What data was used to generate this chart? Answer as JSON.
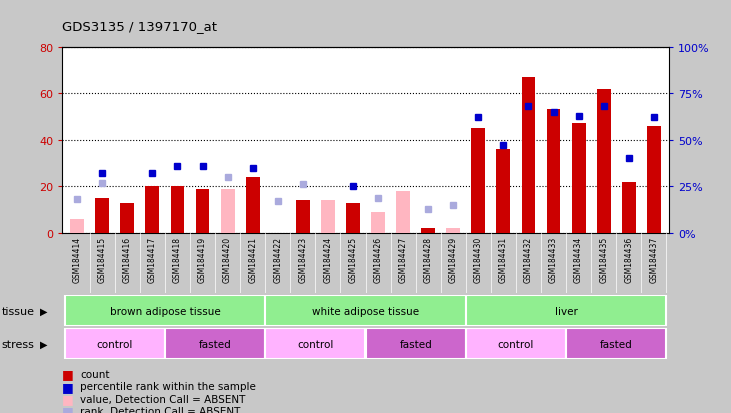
{
  "title": "GDS3135 / 1397170_at",
  "samples": [
    "GSM184414",
    "GSM184415",
    "GSM184416",
    "GSM184417",
    "GSM184418",
    "GSM184419",
    "GSM184420",
    "GSM184421",
    "GSM184422",
    "GSM184423",
    "GSM184424",
    "GSM184425",
    "GSM184426",
    "GSM184427",
    "GSM184428",
    "GSM184429",
    "GSM184430",
    "GSM184431",
    "GSM184432",
    "GSM184433",
    "GSM184434",
    "GSM184435",
    "GSM184436",
    "GSM184437"
  ],
  "count_present": [
    0,
    15,
    13,
    20,
    20,
    19,
    0,
    24,
    0,
    14,
    0,
    13,
    0,
    0,
    2,
    0,
    45,
    36,
    67,
    53,
    47,
    62,
    22,
    46
  ],
  "count_absent": [
    6,
    0,
    0,
    0,
    0,
    0,
    19,
    0,
    0,
    0,
    14,
    0,
    9,
    18,
    0,
    2,
    0,
    0,
    0,
    0,
    0,
    0,
    0,
    0
  ],
  "rank_present": [
    0,
    32,
    0,
    32,
    36,
    36,
    0,
    35,
    0,
    0,
    0,
    25,
    0,
    0,
    0,
    0,
    62,
    47,
    68,
    65,
    63,
    68,
    40,
    62
  ],
  "rank_absent": [
    18,
    27,
    0,
    0,
    0,
    0,
    30,
    0,
    17,
    26,
    0,
    0,
    19,
    0,
    13,
    15,
    0,
    0,
    0,
    0,
    0,
    0,
    0,
    0
  ],
  "tissue_groups": [
    {
      "label": "brown adipose tissue",
      "start": 0,
      "end": 7,
      "color": "#90EE90"
    },
    {
      "label": "white adipose tissue",
      "start": 8,
      "end": 15,
      "color": "#90EE90"
    },
    {
      "label": "liver",
      "start": 16,
      "end": 23,
      "color": "#90EE90"
    }
  ],
  "stress_groups": [
    {
      "label": "control",
      "start": 0,
      "end": 3,
      "color": "#FFB3FF"
    },
    {
      "label": "fasted",
      "start": 4,
      "end": 7,
      "color": "#CC66CC"
    },
    {
      "label": "control",
      "start": 8,
      "end": 11,
      "color": "#FFB3FF"
    },
    {
      "label": "fasted",
      "start": 12,
      "end": 15,
      "color": "#CC66CC"
    },
    {
      "label": "control",
      "start": 16,
      "end": 19,
      "color": "#FFB3FF"
    },
    {
      "label": "fasted",
      "start": 20,
      "end": 23,
      "color": "#CC66CC"
    }
  ],
  "ylim_left": [
    0,
    80
  ],
  "ylim_right": [
    0,
    100
  ],
  "yticks_left": [
    0,
    20,
    40,
    60,
    80
  ],
  "yticks_right": [
    0,
    25,
    50,
    75,
    100
  ],
  "ytick_labels_left": [
    "0",
    "20",
    "40",
    "60",
    "80"
  ],
  "ytick_labels_right": [
    "0%",
    "25%",
    "50%",
    "75%",
    "100%"
  ],
  "bar_width": 0.55,
  "color_present_bar": "#CC0000",
  "color_absent_bar": "#FFB6C1",
  "color_present_rank": "#0000CC",
  "color_absent_rank": "#AAAADD",
  "bg_color": "#C8C8C8",
  "plot_bg": "#FFFFFF"
}
